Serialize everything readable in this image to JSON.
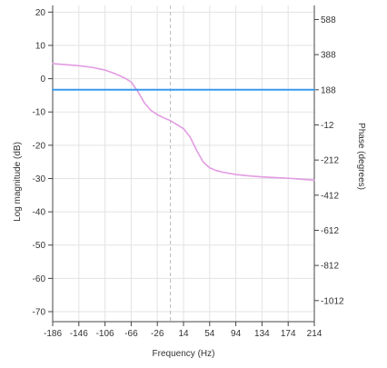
{
  "chart_data": {
    "type": "line",
    "title": "",
    "xlabel": "Frequency (Hz)",
    "ylabel_left": "Log magnitude (dB)",
    "ylabel_right": "Phase (degrees)",
    "grid": true,
    "xlim": [
      -186,
      214
    ],
    "xticks": [
      -186,
      -146,
      -106,
      -66,
      -26,
      14,
      54,
      94,
      134,
      174,
      214
    ],
    "ylim_left": [
      -73,
      22
    ],
    "yticks_left": [
      20,
      10,
      0,
      -10,
      -20,
      -30,
      -40,
      -50,
      -60,
      -70
    ],
    "ylim_right": [
      -1132,
      668
    ],
    "yticks_right": [
      588,
      388,
      188,
      -12,
      -212,
      -412,
      -612,
      -812,
      -1012
    ],
    "vertical_marker_x": -6,
    "series": [
      {
        "axis": "left",
        "color": "#e29be2",
        "x": [
          -186,
          -166,
          -146,
          -126,
          -106,
          -96,
          -86,
          -76,
          -66,
          -56,
          -46,
          -36,
          -26,
          -16,
          -6,
          4,
          14,
          24,
          34,
          44,
          54,
          64,
          74,
          94,
          114,
          134,
          154,
          174,
          194,
          214
        ],
        "y": [
          4.5,
          4.2,
          3.9,
          3.4,
          2.6,
          1.9,
          1.1,
          0.2,
          -1.0,
          -3.8,
          -7.2,
          -9.5,
          -10.8,
          -11.8,
          -12.6,
          -13.8,
          -15.0,
          -17.5,
          -21.5,
          -25.0,
          -26.8,
          -27.6,
          -28.1,
          -28.8,
          -29.2,
          -29.5,
          -29.7,
          -29.9,
          -30.2,
          -30.5
        ]
      },
      {
        "axis": "right",
        "color": "#3a9af0",
        "x": [
          -186,
          214
        ],
        "y": [
          188,
          188
        ]
      }
    ]
  }
}
